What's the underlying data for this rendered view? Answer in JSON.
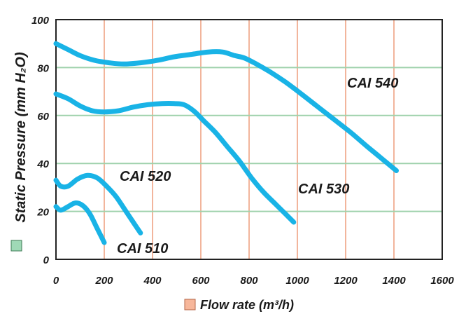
{
  "chart_data": {
    "type": "line",
    "title": "",
    "xlabel": "Flow rate (m³/h)",
    "ylabel": "Static Pressure (mm H₂O)",
    "xlim": [
      0,
      1600
    ],
    "ylim": [
      0,
      100
    ],
    "x_ticks": [
      0,
      200,
      400,
      600,
      800,
      1000,
      1200,
      1400,
      1600
    ],
    "y_ticks": [
      0,
      20,
      40,
      60,
      80,
      100
    ],
    "x_tick_labels": [
      "0",
      "200",
      "400",
      "600",
      "800",
      "1000",
      "1200",
      "1400",
      "1600"
    ],
    "y_tick_labels": [
      "0",
      "20",
      "40",
      "60",
      "80",
      "100"
    ],
    "grid": true,
    "colors": {
      "curve": "#19b3e6",
      "vertical_grid": "#f2b59c",
      "horizontal_grid": "#9fd2ac",
      "frame": "#222222",
      "ylabel_swatch": "#9fd9b6",
      "xlabel_swatch": "#f7b79b"
    },
    "series": [
      {
        "name": "CAI 510",
        "points": [
          [
            0,
            22
          ],
          [
            20,
            20.5
          ],
          [
            50,
            22
          ],
          [
            80,
            23.5
          ],
          [
            110,
            22.5
          ],
          [
            140,
            19
          ],
          [
            170,
            13
          ],
          [
            200,
            7
          ]
        ]
      },
      {
        "name": "CAI 520",
        "points": [
          [
            0,
            33
          ],
          [
            20,
            30.5
          ],
          [
            50,
            30.5
          ],
          [
            90,
            33.5
          ],
          [
            130,
            35
          ],
          [
            170,
            34
          ],
          [
            210,
            30.5
          ],
          [
            250,
            26
          ],
          [
            290,
            20
          ],
          [
            320,
            15.5
          ],
          [
            350,
            11
          ]
        ]
      },
      {
        "name": "CAI 530",
        "points": [
          [
            0,
            69
          ],
          [
            50,
            67
          ],
          [
            100,
            64
          ],
          [
            150,
            62
          ],
          [
            200,
            61.5
          ],
          [
            260,
            62
          ],
          [
            320,
            63.5
          ],
          [
            380,
            64.5
          ],
          [
            440,
            65
          ],
          [
            490,
            65
          ],
          [
            530,
            64.5
          ],
          [
            570,
            62
          ],
          [
            610,
            58
          ],
          [
            660,
            53
          ],
          [
            710,
            47
          ],
          [
            760,
            41
          ],
          [
            810,
            34
          ],
          [
            860,
            28
          ],
          [
            910,
            23
          ],
          [
            950,
            19
          ],
          [
            985,
            15.5
          ]
        ]
      },
      {
        "name": "CAI 540",
        "points": [
          [
            0,
            90
          ],
          [
            50,
            87.5
          ],
          [
            100,
            85
          ],
          [
            160,
            83
          ],
          [
            220,
            82
          ],
          [
            280,
            81.5
          ],
          [
            350,
            82
          ],
          [
            420,
            83
          ],
          [
            490,
            84.5
          ],
          [
            560,
            85.5
          ],
          [
            630,
            86.5
          ],
          [
            690,
            86.5
          ],
          [
            740,
            85
          ],
          [
            780,
            84
          ],
          [
            830,
            81.5
          ],
          [
            890,
            78
          ],
          [
            950,
            74
          ],
          [
            1010,
            69.5
          ],
          [
            1080,
            64
          ],
          [
            1150,
            58.5
          ],
          [
            1220,
            53
          ],
          [
            1290,
            47
          ],
          [
            1350,
            42
          ],
          [
            1410,
            37
          ]
        ]
      }
    ]
  }
}
